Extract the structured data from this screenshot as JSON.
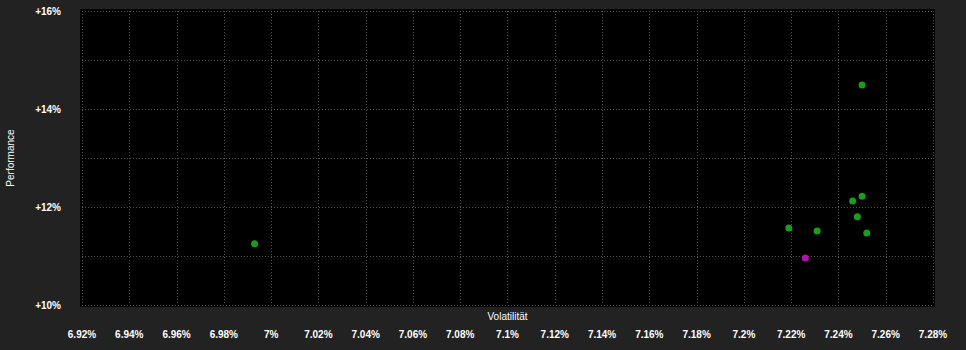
{
  "chart_data": {
    "type": "scatter",
    "x_label": "Volatilität",
    "y_label": "Performance",
    "xlim": [
      6.92,
      7.28
    ],
    "xticks": [
      {
        "value": 6.92,
        "label": "6.92%"
      },
      {
        "value": 6.94,
        "label": "6.94%"
      },
      {
        "value": 6.96,
        "label": "6.96%"
      },
      {
        "value": 6.98,
        "label": "6.98%"
      },
      {
        "value": 7.0,
        "label": "7%"
      },
      {
        "value": 7.02,
        "label": "7.02%"
      },
      {
        "value": 7.04,
        "label": "7.04%"
      },
      {
        "value": 7.06,
        "label": "7.06%"
      },
      {
        "value": 7.08,
        "label": "7.08%"
      },
      {
        "value": 7.1,
        "label": "7.1%"
      },
      {
        "value": 7.12,
        "label": "7.12%"
      },
      {
        "value": 7.14,
        "label": "7.14%"
      },
      {
        "value": 7.16,
        "label": "7.16%"
      },
      {
        "value": 7.18,
        "label": "7.18%"
      },
      {
        "value": 7.2,
        "label": "7.2%"
      },
      {
        "value": 7.22,
        "label": "7.22%"
      },
      {
        "value": 7.24,
        "label": "7.24%"
      },
      {
        "value": 7.26,
        "label": "7.26%"
      },
      {
        "value": 7.28,
        "label": "7.28%"
      }
    ],
    "ylim": [
      10,
      16
    ],
    "yticks": [
      {
        "value": 10,
        "label": "+10%"
      },
      {
        "value": 12,
        "label": "+12%"
      },
      {
        "value": 14,
        "label": "+14%"
      },
      {
        "value": 16,
        "label": "+16%"
      }
    ],
    "grid": true,
    "series": [
      {
        "color": "#1a9e1a",
        "marker": "circle",
        "x": [
          6.993,
          7.219,
          7.231,
          7.246,
          7.25,
          7.248,
          7.252,
          7.25
        ],
        "values": [
          11.25,
          11.57,
          11.51,
          12.12,
          12.22,
          11.8,
          11.47,
          14.49
        ]
      },
      {
        "color": "#b010b0",
        "marker": "circle",
        "x": [
          7.226
        ],
        "values": [
          10.96
        ]
      }
    ]
  }
}
